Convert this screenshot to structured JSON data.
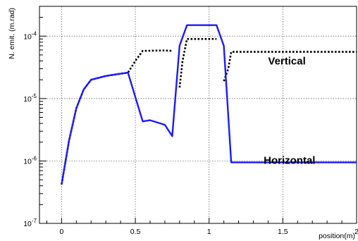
{
  "chart_data": {
    "type": "line",
    "title": "",
    "xlabel": "position(m)",
    "ylabel": "N. emit. (m.rad)",
    "xlim": [
      -0.15,
      2.0
    ],
    "ylim": [
      1e-07,
      0.0003
    ],
    "yscale": "log",
    "grid": true,
    "x_ticks": [
      {
        "value": 0,
        "label": "0"
      },
      {
        "value": 0.5,
        "label": "0.5"
      },
      {
        "value": 1,
        "label": "1"
      },
      {
        "value": 1.5,
        "label": "1.5"
      },
      {
        "value": 2,
        "label": "2"
      }
    ],
    "y_ticks": [
      {
        "value": 1e-07,
        "base": "10",
        "exp": "-7"
      },
      {
        "value": 1e-06,
        "base": "10",
        "exp": "-6"
      },
      {
        "value": 1e-05,
        "base": "10",
        "exp": "-5"
      },
      {
        "value": 0.0001,
        "base": "10",
        "exp": "-4"
      }
    ],
    "series": [
      {
        "name": "Horizontal",
        "color": "#1a1aff",
        "style": "solid",
        "label_at": [
          1.37,
          9e-07
        ],
        "points": [
          [
            0.0,
            4.2e-07
          ],
          [
            0.05,
            2.1e-06
          ],
          [
            0.1,
            7e-06
          ],
          [
            0.15,
            1.4e-05
          ],
          [
            0.2,
            2e-05
          ],
          [
            0.3,
            2.3e-05
          ],
          [
            0.4,
            2.5e-05
          ],
          [
            0.45,
            2.6e-05
          ],
          [
            0.55,
            4.3e-06
          ],
          [
            0.6,
            4.5e-06
          ],
          [
            0.7,
            3.8e-06
          ],
          [
            0.75,
            2.5e-06
          ],
          [
            0.8,
            7e-05
          ],
          [
            0.85,
            0.00015
          ],
          [
            1.0,
            0.00015
          ],
          [
            1.05,
            0.00015
          ],
          [
            1.1,
            7e-05
          ],
          [
            1.15,
            9.5e-07
          ],
          [
            2.0,
            9.5e-07
          ]
        ]
      },
      {
        "name": "Vertical",
        "color": "#000000",
        "style": "dotted",
        "label_at": [
          1.4,
          3.5e-05
        ],
        "segments": [
          [
            [
              0.0,
              4.2e-07
            ],
            [
              0.05,
              2.1e-06
            ],
            [
              0.1,
              7e-06
            ],
            [
              0.15,
              1.4e-05
            ],
            [
              0.2,
              2e-05
            ],
            [
              0.3,
              2.3e-05
            ],
            [
              0.4,
              2.5e-05
            ],
            [
              0.45,
              2.6e-05
            ],
            [
              0.5,
              4e-05
            ],
            [
              0.55,
              5.8e-05
            ],
            [
              0.7,
              5.9e-05
            ],
            [
              0.75,
              5.8e-05
            ]
          ],
          [
            [
              0.8,
              1.5e-05
            ],
            [
              0.82,
              4e-05
            ],
            [
              0.85,
              9e-05
            ],
            [
              1.05,
              9e-05
            ]
          ],
          [
            [
              1.1,
              1.9e-05
            ],
            [
              1.13,
              3e-05
            ],
            [
              1.15,
              5.6e-05
            ],
            [
              2.0,
              5.6e-05
            ]
          ]
        ]
      }
    ]
  }
}
